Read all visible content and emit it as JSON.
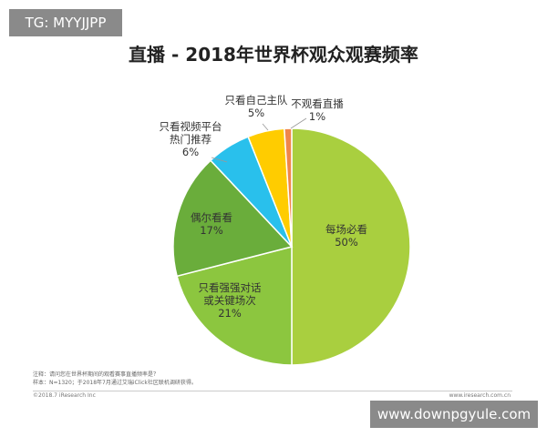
{
  "badge": {
    "text": "TG: MYYJJPP"
  },
  "chart_data": {
    "type": "pie",
    "title": "直播 - 2018年世界杯观众观赛频率",
    "slices": [
      {
        "label": "每场必看",
        "value": 50,
        "display": "50%",
        "color": "#a9cf3f"
      },
      {
        "label": "只看强强对话或关键场次",
        "value": 21,
        "display": "21%",
        "color": "#8cc63f"
      },
      {
        "label": "偶尔看看",
        "value": 17,
        "display": "17%",
        "color": "#6aad3b"
      },
      {
        "label": "只看视频平台热门推荐",
        "value": 6,
        "display": "6%",
        "color": "#29c0ec"
      },
      {
        "label": "只看自己主队",
        "value": 5,
        "display": "5%",
        "color": "#ffcc00"
      },
      {
        "label": "不观看直播",
        "value": 1,
        "display": "1%",
        "color": "#f0864a"
      }
    ]
  },
  "footer": {
    "note": "注释：请问您在世界杯期间的观看赛事直播频率是？",
    "sample": "样本：N=1320；于2018年7月通过艾瑞iClick社区联机调研获得。",
    "copyright": "©2018.7 iResearch Inc",
    "site": "www.iresearch.com.cn"
  },
  "watermark": {
    "text": "www.downpgyule.com"
  }
}
